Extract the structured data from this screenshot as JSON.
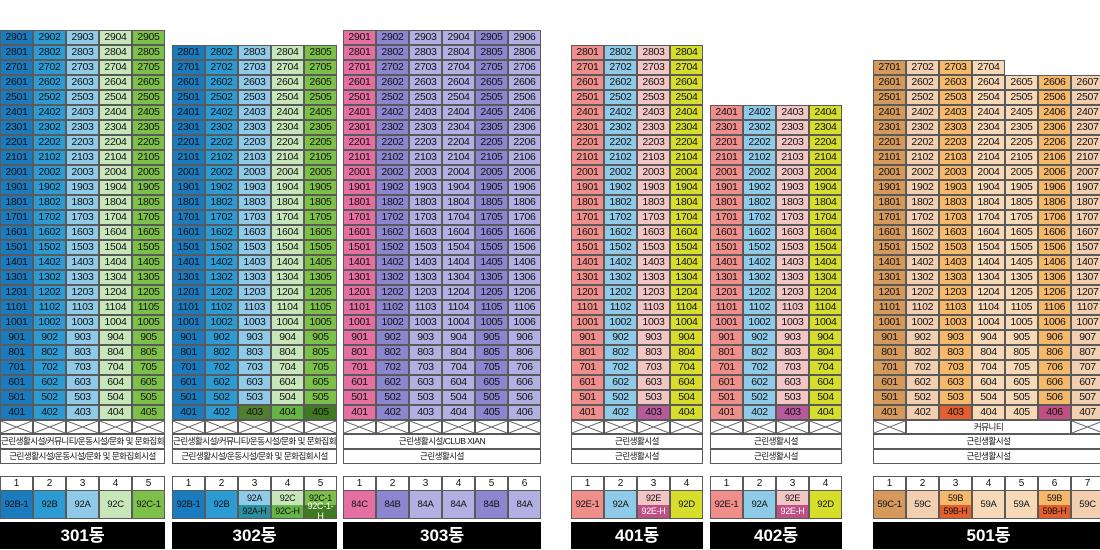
{
  "colors": {
    "c_92B1": "#1b7bbf",
    "c_92B": "#2c9bd4",
    "c_92A": "#8fcbe8",
    "c_92C": "#c7e6ba",
    "c_92C1": "#7cc04a",
    "c_92AH": "#2a8f9f",
    "c_92CH": "#67b446",
    "c_92C1H": "#3f7a1f",
    "c_84C": "#e56fa1",
    "c_84B": "#8b86cf",
    "c_84A": "#b2afe3",
    "c_92E1": "#ef8e8b",
    "c_92E": "#f2c6c4",
    "c_92EH": "#c04f84",
    "c_92D": "#d6dd2a",
    "c_59C1": "#d59a5b",
    "c_59C": "#f1cfb0",
    "c_59B": "#f6b96a",
    "c_59BH": "#e2602e",
    "c_59A": "#f7d9b8",
    "c_hl_403_302": "#4f7f2f",
    "c_hl_403_401": "#b85a9a",
    "c_hl_405_302": "#3f7a1f",
    "c_hl_403_501": "#e2602e",
    "c_hl_406_501": "#c04f84"
  },
  "buildings": [
    {
      "name": "301동",
      "x": 0,
      "cols": 5,
      "topFloor": 29,
      "minFloor": 4,
      "colColors": [
        "c_92B1",
        "c_92B",
        "c_92A",
        "c_92C",
        "c_92C1"
      ],
      "facility1": "근린생활시설/커뮤니티/운동시설/문화 및 문화집회시설",
      "facility2": "근린생활시설/운동시설/문화 및 문화집회시설",
      "legendNums": [
        "1",
        "2",
        "3",
        "4",
        "5"
      ],
      "legend": [
        [
          "92B-1"
        ],
        [
          "92B"
        ],
        [
          "92A"
        ],
        [
          "92C"
        ],
        [
          "92C-1"
        ]
      ],
      "legendColors": [
        [
          "c_92B1"
        ],
        [
          "c_92B"
        ],
        [
          "c_92A"
        ],
        [
          "c_92C"
        ],
        [
          "c_92C1"
        ]
      ],
      "highlights": {}
    },
    {
      "name": "302동",
      "x": 172,
      "cols": 5,
      "topFloor": 28,
      "minFloor": 4,
      "colColors": [
        "c_92B1",
        "c_92B",
        "c_92A",
        "c_92C",
        "c_92C1"
      ],
      "facility1": "근린생활시설/커뮤니티/운동시설/문화 및 문화집회시설",
      "facility2": "근린생활시설/운동시설/문화 및 문화집회시설",
      "legendNums": [
        "1",
        "2",
        "3",
        "4",
        "5"
      ],
      "legend": [
        [
          "92B-1"
        ],
        [
          "92B"
        ],
        [
          "92A",
          "92A-H"
        ],
        [
          "92C",
          "92C-H"
        ],
        [
          "92C-1",
          "92C-1-H"
        ]
      ],
      "legendColors": [
        [
          "c_92B1"
        ],
        [
          "c_92B"
        ],
        [
          "c_92A",
          "c_92AH"
        ],
        [
          "c_92C",
          "c_92CH"
        ],
        [
          "c_92C1",
          "c_92C1H"
        ]
      ],
      "highlights": {
        "403": "c_hl_403_302",
        "404": "c_92CH",
        "405": "c_hl_405_302"
      }
    },
    {
      "name": "303동",
      "x": 343,
      "cols": 6,
      "topFloor": 29,
      "minFloor": 4,
      "colColors": [
        "c_84C",
        "c_84B",
        "c_84A",
        "c_84A",
        "c_84B",
        "c_84A"
      ],
      "facility1": "근린생활시설/CLUB XIAN",
      "facility2": "근린생활시설",
      "legendNums": [
        "1",
        "2",
        "3",
        "4",
        "5",
        "6"
      ],
      "legend": [
        [
          "84C"
        ],
        [
          "84B"
        ],
        [
          "84A"
        ],
        [
          "84A"
        ],
        [
          "84B"
        ],
        [
          "84A"
        ]
      ],
      "legendColors": [
        [
          "c_84C"
        ],
        [
          "c_84B"
        ],
        [
          "c_84A"
        ],
        [
          "c_84A"
        ],
        [
          "c_84B"
        ],
        [
          "c_84A"
        ]
      ],
      "highlights": {}
    },
    {
      "name": "401동",
      "x": 571,
      "cols": 4,
      "topFloor": 28,
      "minFloor": 4,
      "colColors": [
        "c_92E1",
        "c_92A",
        "c_92E",
        "c_92D"
      ],
      "facility1": "근린생활시설",
      "facility2": "근린생활시설",
      "legendNums": [
        "1",
        "2",
        "3",
        "4"
      ],
      "legend": [
        [
          "92E-1"
        ],
        [
          "92A"
        ],
        [
          "92E",
          "92E-H"
        ],
        [
          "92D"
        ]
      ],
      "legendColors": [
        [
          "c_92E1"
        ],
        [
          "c_92A"
        ],
        [
          "c_92E",
          "c_92EH"
        ],
        [
          "c_92D"
        ]
      ],
      "highlights": {
        "403": "c_hl_403_401"
      }
    },
    {
      "name": "402동",
      "x": 710,
      "cols": 4,
      "topFloor": 24,
      "minFloor": 4,
      "colColors": [
        "c_92E1",
        "c_92A",
        "c_92E",
        "c_92D"
      ],
      "facility1": "근린생활시설",
      "facility2": "근린생활시설",
      "legendNums": [
        "1",
        "2",
        "3",
        "4"
      ],
      "legend": [
        [
          "92E-1"
        ],
        [
          "92A"
        ],
        [
          "92E",
          "92E-H"
        ],
        [
          "92D"
        ]
      ],
      "legendColors": [
        [
          "c_92E1"
        ],
        [
          "c_92A"
        ],
        [
          "c_92E",
          "c_92EH"
        ],
        [
          "c_92D"
        ]
      ],
      "highlights": {
        "403": "c_hl_403_401"
      }
    },
    {
      "name": "501동",
      "x": 873,
      "cols": 7,
      "topFloor": 26,
      "minFloor": 4,
      "topExtra": {
        "floor": 27,
        "cols": 4
      },
      "colColors": [
        "c_59C1",
        "c_59C",
        "c_59B",
        "c_59A",
        "c_59A",
        "c_59B",
        "c_59C"
      ],
      "facility0": "커뮤니티",
      "facility1": "근린생활시설",
      "facility2": "근린생활시설",
      "legendNums": [
        "1",
        "2",
        "3",
        "4",
        "5",
        "6",
        "7"
      ],
      "legend": [
        [
          "59C-1"
        ],
        [
          "59C"
        ],
        [
          "59B",
          "59B-H"
        ],
        [
          "59A"
        ],
        [
          "59A"
        ],
        [
          "59B",
          "59B-H"
        ],
        [
          "59C"
        ]
      ],
      "legendColors": [
        [
          "c_59C1"
        ],
        [
          "c_59C"
        ],
        [
          "c_59B",
          "c_59BH"
        ],
        [
          "c_59A"
        ],
        [
          "c_59A"
        ],
        [
          "c_59B",
          "c_59BH"
        ],
        [
          "c_59C"
        ]
      ],
      "highlights": {
        "403": "c_hl_403_501",
        "406": "c_hl_406_501"
      }
    }
  ]
}
